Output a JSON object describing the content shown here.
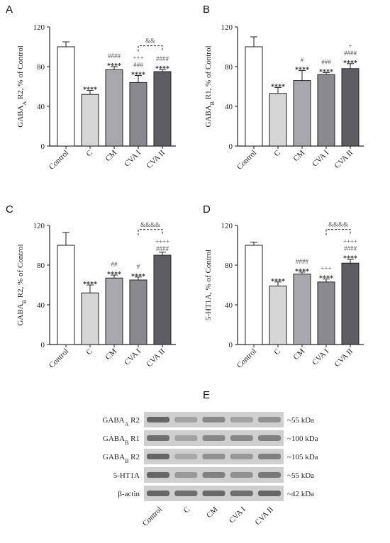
{
  "chart_data": [
    {
      "type": "bar",
      "panel": "A",
      "categories": [
        "Control",
        "C",
        "CM",
        "CVA I",
        "CVA II"
      ],
      "values": [
        100,
        52,
        77,
        64,
        75
      ],
      "errors": [
        5,
        4,
        3,
        7,
        2
      ],
      "ylabel": {
        "pre": "GABA",
        "sub": "A",
        "post": " R2, % of Control"
      },
      "ylim": [
        0,
        120
      ],
      "yticks": [
        "0",
        "40",
        "80",
        "120"
      ],
      "annotations": [
        [],
        [
          "****"
        ],
        [
          "####",
          "****"
        ],
        [
          "+++",
          "###",
          "****"
        ],
        [
          "####",
          "****"
        ]
      ],
      "brackets": [
        {
          "from": 3,
          "to": 4,
          "label": "&&"
        }
      ]
    },
    {
      "type": "bar",
      "panel": "B",
      "categories": [
        "Control",
        "C",
        "CM",
        "CVA I",
        "CVA II"
      ],
      "values": [
        100,
        53,
        66,
        72,
        78
      ],
      "errors": [
        10,
        6,
        10,
        2,
        5
      ],
      "ylabel": {
        "pre": "GABA",
        "sub": "B",
        "post": " R1, % of Control"
      },
      "ylim": [
        0,
        120
      ],
      "yticks": [
        "0",
        "40",
        "80",
        "120"
      ],
      "annotations": [
        [],
        [
          "****"
        ],
        [
          "#",
          "****"
        ],
        [
          "###",
          "****"
        ],
        [
          "+",
          "####",
          "****"
        ]
      ],
      "brackets": []
    },
    {
      "type": "bar",
      "panel": "C",
      "categories": [
        "Control",
        "C",
        "CM",
        "CVA I",
        "CVA II"
      ],
      "values": [
        100,
        52,
        67,
        65,
        90
      ],
      "errors": [
        13,
        8,
        3,
        3,
        3
      ],
      "ylabel": {
        "pre": "GABA",
        "sub": "B",
        "post": " R2, % of Control"
      },
      "ylim": [
        0,
        120
      ],
      "yticks": [
        "0",
        "40",
        "80",
        "120"
      ],
      "annotations": [
        [],
        [
          "****"
        ],
        [
          "##",
          "****"
        ],
        [
          "#",
          "****"
        ],
        [
          "++++",
          "####"
        ]
      ],
      "brackets": [
        {
          "from": 3,
          "to": 4,
          "label": "&&&&"
        }
      ]
    },
    {
      "type": "bar",
      "panel": "D",
      "categories": [
        "Control",
        "C",
        "CM",
        "CVA I",
        "CVA II"
      ],
      "values": [
        100,
        59,
        71,
        63,
        82
      ],
      "errors": [
        3,
        4,
        2,
        3,
        4
      ],
      "ylabel": {
        "pre": "5-HT1A, % of Control",
        "sub": "",
        "post": ""
      },
      "ylim": [
        0,
        120
      ],
      "yticks": [
        "0",
        "40",
        "80",
        "120"
      ],
      "annotations": [
        [],
        [
          "****"
        ],
        [
          "####",
          "****"
        ],
        [
          "+++",
          "****"
        ],
        [
          "++++",
          "####",
          "****"
        ]
      ],
      "brackets": [
        {
          "from": 3,
          "to": 4,
          "label": "&&&&"
        }
      ]
    }
  ],
  "colors": {
    "bars": [
      "#ffffff",
      "#d6d6d6",
      "#a8a8ac",
      "#8a8a8e",
      "#5e5e62"
    ],
    "axis": "#222222",
    "annotation": "#555555"
  },
  "blot": {
    "panel": "E",
    "rows": [
      {
        "pre": "GABA",
        "sub": "A",
        "post": " R2",
        "size": "~55 kDa"
      },
      {
        "pre": "GABA",
        "sub": "B",
        "post": " R1",
        "size": "~100 kDa"
      },
      {
        "pre": "GABA",
        "sub": "B",
        "post": " R2",
        "size": "~105 kDa"
      },
      {
        "pre": "5-HT1A",
        "sub": "",
        "post": "",
        "size": "~55 kDa"
      },
      {
        "pre": "β-actin",
        "sub": "",
        "post": "",
        "size": "~42 kDa"
      }
    ],
    "lanes": [
      "Control",
      "C",
      "CM",
      "CVA I",
      "CVA II"
    ]
  }
}
